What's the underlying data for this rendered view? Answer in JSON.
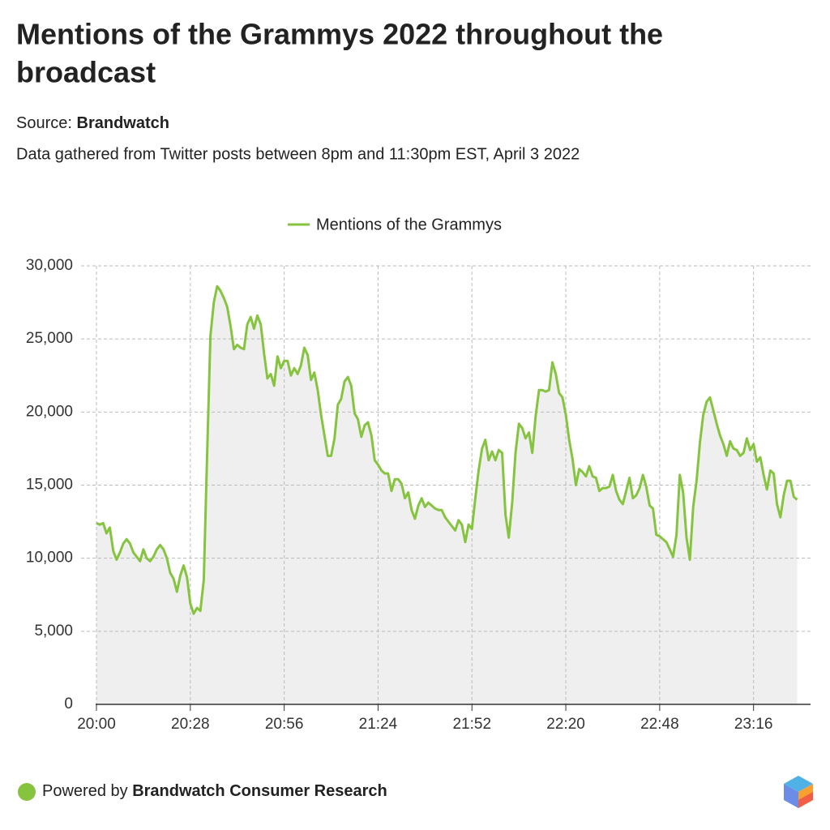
{
  "chart_data": {
    "type": "line",
    "title": [
      "Mentions of the Grammys 2022 throughout the",
      "broadcast"
    ],
    "source_label": "Source:",
    "source": "Brandwatch",
    "subtitle": "Data gathered from Twitter posts between 8pm and 11:30pm EST, April 3 2022",
    "footer": "Powered by",
    "footer_brand": "Brandwatch Consumer Research",
    "x": [
      "20:00",
      "20:01",
      "20:02",
      "20:03",
      "20:04",
      "20:05",
      "20:06",
      "20:07",
      "20:08",
      "20:09",
      "20:10",
      "20:11",
      "20:12",
      "20:13",
      "20:14",
      "20:15",
      "20:16",
      "20:17",
      "20:18",
      "20:19",
      "20:20",
      "20:21",
      "20:22",
      "20:23",
      "20:24",
      "20:25",
      "20:26",
      "20:27",
      "20:28",
      "20:29",
      "20:30",
      "20:31",
      "20:32",
      "20:33",
      "20:34",
      "20:35",
      "20:36",
      "20:37",
      "20:38",
      "20:39",
      "20:40",
      "20:41",
      "20:42",
      "20:43",
      "20:44",
      "20:45",
      "20:46",
      "20:47",
      "20:48",
      "20:49",
      "20:50",
      "20:51",
      "20:52",
      "20:53",
      "20:54",
      "20:55",
      "20:56",
      "20:57",
      "20:58",
      "20:59",
      "21:00",
      "21:01",
      "21:02",
      "21:03",
      "21:04",
      "21:05",
      "21:06",
      "21:07",
      "21:08",
      "21:09",
      "21:10",
      "21:11",
      "21:12",
      "21:13",
      "21:14",
      "21:15",
      "21:16",
      "21:17",
      "21:18",
      "21:19",
      "21:20",
      "21:21",
      "21:22",
      "21:23",
      "21:24",
      "21:25",
      "21:26",
      "21:27",
      "21:28",
      "21:29",
      "21:30",
      "21:31",
      "21:32",
      "21:33",
      "21:34",
      "21:35",
      "21:36",
      "21:37",
      "21:38",
      "21:39",
      "21:40",
      "21:41",
      "21:42",
      "21:43",
      "21:44",
      "21:45",
      "21:46",
      "21:47",
      "21:48",
      "21:49",
      "21:50",
      "21:51",
      "21:52",
      "21:53",
      "21:54",
      "21:55",
      "21:56",
      "21:57",
      "21:58",
      "21:59",
      "22:00",
      "22:01",
      "22:02",
      "22:03",
      "22:04",
      "22:05",
      "22:06",
      "22:07",
      "22:08",
      "22:09",
      "22:10",
      "22:11",
      "22:12",
      "22:13",
      "22:14",
      "22:15",
      "22:16",
      "22:17",
      "22:18",
      "22:19",
      "22:20",
      "22:21",
      "22:22",
      "22:23",
      "22:24",
      "22:25",
      "22:26",
      "22:27",
      "22:28",
      "22:29",
      "22:30",
      "22:31",
      "22:32",
      "22:33",
      "22:34",
      "22:35",
      "22:36",
      "22:37",
      "22:38",
      "22:39",
      "22:40",
      "22:41",
      "22:42",
      "22:43",
      "22:44",
      "22:45",
      "22:46",
      "22:47",
      "22:48",
      "22:49",
      "22:50",
      "22:51",
      "22:52",
      "22:53",
      "22:54",
      "22:55",
      "22:56",
      "22:57",
      "22:58",
      "22:59",
      "23:00",
      "23:01",
      "23:02",
      "23:03",
      "23:04",
      "23:05",
      "23:06",
      "23:07",
      "23:08",
      "23:09",
      "23:10",
      "23:11",
      "23:12",
      "23:13",
      "23:14",
      "23:15",
      "23:16",
      "23:17",
      "23:18",
      "23:19",
      "23:20",
      "23:21",
      "23:22",
      "23:23",
      "23:24",
      "23:25",
      "23:26",
      "23:27",
      "23:28",
      "23:29"
    ],
    "series": [
      {
        "name": "Mentions of the Grammys",
        "color": "#86c440",
        "values": [
          12400,
          12300,
          12400,
          11700,
          12100,
          10500,
          9900,
          10400,
          11000,
          11300,
          11000,
          10400,
          10100,
          9800,
          10600,
          10000,
          9800,
          10100,
          10600,
          10900,
          10600,
          10000,
          9000,
          8600,
          7700,
          8800,
          9500,
          8700,
          6900,
          6200,
          6600,
          6400,
          8500,
          17000,
          25200,
          27500,
          28600,
          28300,
          27800,
          27200,
          25900,
          24300,
          24600,
          24400,
          24300,
          26000,
          26500,
          25700,
          26600,
          26000,
          24000,
          22300,
          22600,
          21800,
          23800,
          23000,
          23500,
          23500,
          22500,
          23000,
          22600,
          23200,
          24400,
          23900,
          22200,
          22700,
          21500,
          19800,
          18400,
          17000,
          17000,
          18200,
          20500,
          20900,
          22100,
          22400,
          21800,
          19900,
          19500,
          18300,
          19100,
          19300,
          18400,
          16700,
          16400,
          16000,
          15800,
          15800,
          14600,
          15400,
          15400,
          15100,
          14100,
          14500,
          13300,
          12700,
          13600,
          14100,
          13500,
          13800,
          13600,
          13400,
          13300,
          13300,
          12800,
          12500,
          12200,
          11900,
          12600,
          12300,
          11100,
          12300,
          12000,
          14100,
          16000,
          17500,
          18100,
          16700,
          17300,
          16700,
          17400,
          17200,
          13000,
          11400,
          13800,
          17200,
          19200,
          18900,
          18200,
          18600,
          17200,
          19700,
          21500,
          21500,
          21400,
          21500,
          23400,
          22600,
          21300,
          21000,
          19800,
          18100,
          16800,
          15000,
          16100,
          15900,
          15600,
          16300,
          15600,
          15500,
          14600,
          14800,
          14800,
          14900,
          15700,
          14600,
          14000,
          13700,
          14600,
          15500,
          14100,
          14300,
          14800,
          15700,
          14900,
          13600,
          13400,
          11600,
          11500,
          11300,
          11100,
          10600,
          10100,
          11600,
          15700,
          14500,
          11400,
          9900,
          13500,
          15300,
          17900,
          19800,
          20700,
          21000,
          20100,
          19200,
          18400,
          17800,
          17000,
          18000,
          17500,
          17400,
          17000,
          17200,
          18200,
          17400,
          17800,
          16600,
          16900,
          15700,
          14700,
          16000,
          15800,
          13700,
          12800,
          14300,
          15300,
          15300,
          14200,
          14000
        ]
      }
    ],
    "xlim": [
      "20:00",
      "23:33"
    ],
    "xticks": [
      "20:00",
      "20:28",
      "20:56",
      "21:24",
      "21:52",
      "22:20",
      "22:48",
      "23:16"
    ],
    "ylim": [
      0,
      30000
    ],
    "yticks": [
      0,
      {
        "value": 5000,
        "label": "5,000"
      },
      {
        "value": 10000,
        "label": "10,000"
      },
      {
        "value": 15000,
        "label": "15,000"
      },
      {
        "value": 20000,
        "label": "20,000"
      },
      {
        "value": 25000,
        "label": "25,000"
      },
      {
        "value": 30000,
        "label": "30,000"
      }
    ],
    "grid": true,
    "area_fill": "#efefef",
    "legend": "top"
  }
}
